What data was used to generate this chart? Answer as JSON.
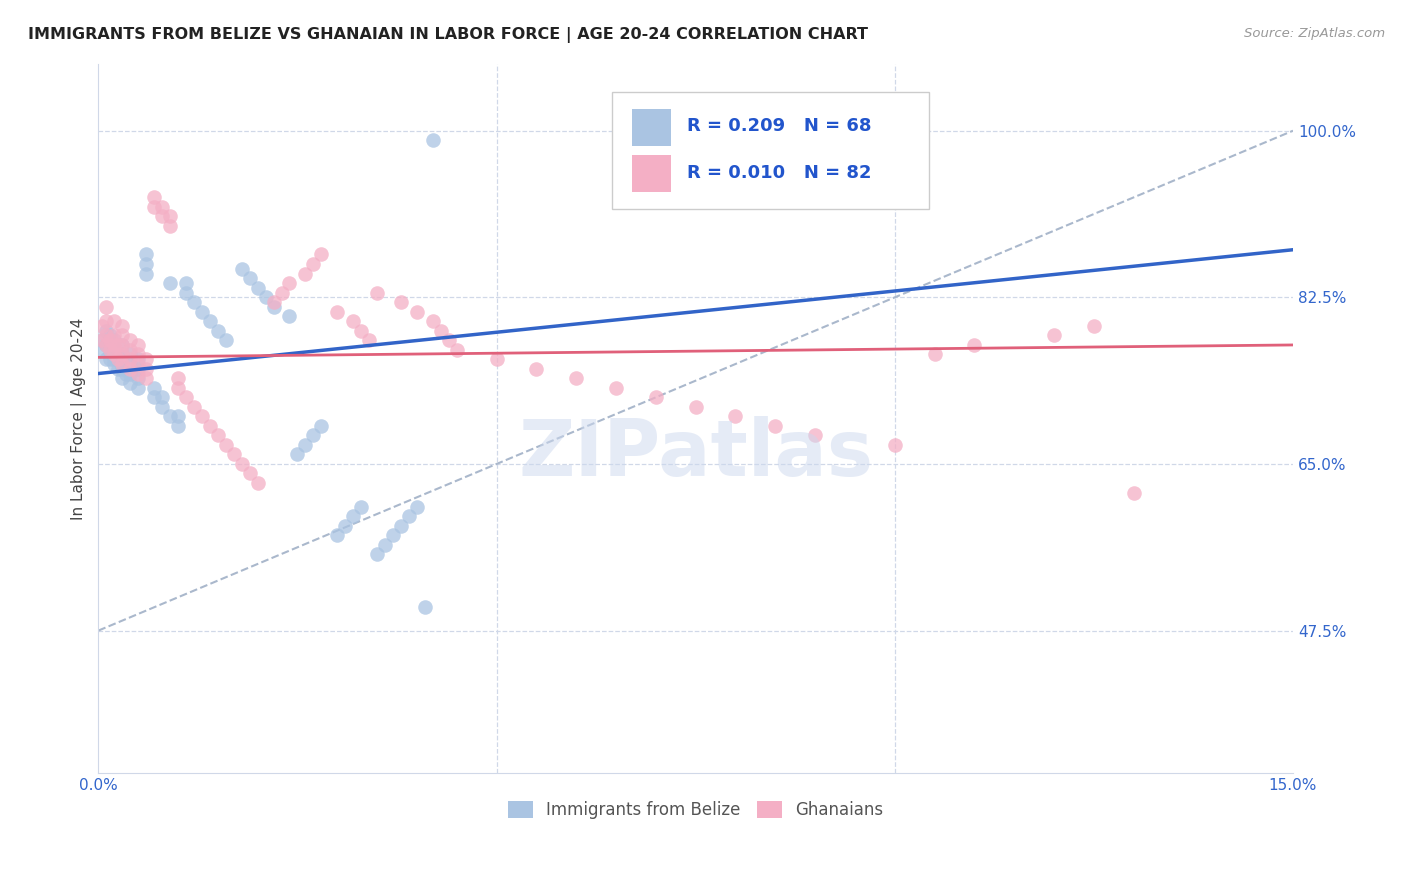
{
  "title": "IMMIGRANTS FROM BELIZE VS GHANAIAN IN LABOR FORCE | AGE 20-24 CORRELATION CHART",
  "source_text": "Source: ZipAtlas.com",
  "ylabel": "In Labor Force | Age 20-24",
  "xlim": [
    0.0,
    0.15
  ],
  "ylim": [
    0.325,
    1.07
  ],
  "watermark": "ZIPatlas",
  "blue_color": "#aac4e2",
  "pink_color": "#f4afc5",
  "line_blue": "#3264c8",
  "line_pink": "#e0607a",
  "line_dash_color": "#aab8cc",
  "grid_color": "#d0d8e8",
  "blue_line_x0": 0.0,
  "blue_line_y0": 0.745,
  "blue_line_x1": 0.15,
  "blue_line_y1": 0.875,
  "pink_line_x0": 0.0,
  "pink_line_y0": 0.762,
  "pink_line_x1": 0.15,
  "pink_line_y1": 0.775,
  "belize_x": [
    0.0005,
    0.0005,
    0.001,
    0.001,
    0.001,
    0.0015,
    0.0015,
    0.0015,
    0.002,
    0.002,
    0.002,
    0.002,
    0.0025,
    0.0025,
    0.003,
    0.003,
    0.003,
    0.003,
    0.003,
    0.0035,
    0.004,
    0.004,
    0.004,
    0.004,
    0.005,
    0.005,
    0.005,
    0.005,
    0.006,
    0.006,
    0.006,
    0.007,
    0.007,
    0.008,
    0.008,
    0.009,
    0.009,
    0.01,
    0.01,
    0.011,
    0.011,
    0.012,
    0.013,
    0.014,
    0.015,
    0.016,
    0.018,
    0.019,
    0.02,
    0.021,
    0.022,
    0.024,
    0.025,
    0.026,
    0.027,
    0.028,
    0.03,
    0.031,
    0.032,
    0.033,
    0.035,
    0.036,
    0.037,
    0.038,
    0.039,
    0.04,
    0.041,
    0.042
  ],
  "belize_y": [
    0.77,
    0.78,
    0.76,
    0.775,
    0.79,
    0.76,
    0.77,
    0.785,
    0.755,
    0.76,
    0.77,
    0.78,
    0.75,
    0.765,
    0.74,
    0.75,
    0.758,
    0.765,
    0.775,
    0.745,
    0.735,
    0.745,
    0.755,
    0.765,
    0.73,
    0.74,
    0.75,
    0.76,
    0.85,
    0.86,
    0.87,
    0.72,
    0.73,
    0.71,
    0.72,
    0.7,
    0.84,
    0.69,
    0.7,
    0.83,
    0.84,
    0.82,
    0.81,
    0.8,
    0.79,
    0.78,
    0.855,
    0.845,
    0.835,
    0.825,
    0.815,
    0.805,
    0.66,
    0.67,
    0.68,
    0.69,
    0.575,
    0.585,
    0.595,
    0.605,
    0.555,
    0.565,
    0.575,
    0.585,
    0.595,
    0.605,
    0.5,
    0.99
  ],
  "ghana_x": [
    0.0005,
    0.0005,
    0.001,
    0.001,
    0.001,
    0.001,
    0.0015,
    0.0015,
    0.002,
    0.002,
    0.002,
    0.002,
    0.0025,
    0.0025,
    0.003,
    0.003,
    0.003,
    0.003,
    0.003,
    0.004,
    0.004,
    0.004,
    0.004,
    0.005,
    0.005,
    0.005,
    0.005,
    0.006,
    0.006,
    0.006,
    0.007,
    0.007,
    0.008,
    0.008,
    0.009,
    0.009,
    0.01,
    0.01,
    0.011,
    0.012,
    0.013,
    0.014,
    0.015,
    0.016,
    0.017,
    0.018,
    0.019,
    0.02,
    0.022,
    0.023,
    0.024,
    0.026,
    0.027,
    0.028,
    0.03,
    0.032,
    0.033,
    0.034,
    0.035,
    0.038,
    0.04,
    0.042,
    0.043,
    0.044,
    0.045,
    0.05,
    0.055,
    0.06,
    0.065,
    0.07,
    0.075,
    0.08,
    0.085,
    0.09,
    0.1,
    0.105,
    0.11,
    0.12,
    0.125,
    0.13
  ],
  "ghana_y": [
    0.78,
    0.795,
    0.775,
    0.785,
    0.8,
    0.815,
    0.77,
    0.78,
    0.765,
    0.775,
    0.785,
    0.8,
    0.76,
    0.775,
    0.755,
    0.765,
    0.775,
    0.785,
    0.795,
    0.75,
    0.76,
    0.77,
    0.78,
    0.745,
    0.755,
    0.765,
    0.775,
    0.74,
    0.75,
    0.76,
    0.92,
    0.93,
    0.91,
    0.92,
    0.9,
    0.91,
    0.73,
    0.74,
    0.72,
    0.71,
    0.7,
    0.69,
    0.68,
    0.67,
    0.66,
    0.65,
    0.64,
    0.63,
    0.82,
    0.83,
    0.84,
    0.85,
    0.86,
    0.87,
    0.81,
    0.8,
    0.79,
    0.78,
    0.83,
    0.82,
    0.81,
    0.8,
    0.79,
    0.78,
    0.77,
    0.76,
    0.75,
    0.74,
    0.73,
    0.72,
    0.71,
    0.7,
    0.69,
    0.68,
    0.67,
    0.765,
    0.775,
    0.785,
    0.795,
    0.62
  ]
}
